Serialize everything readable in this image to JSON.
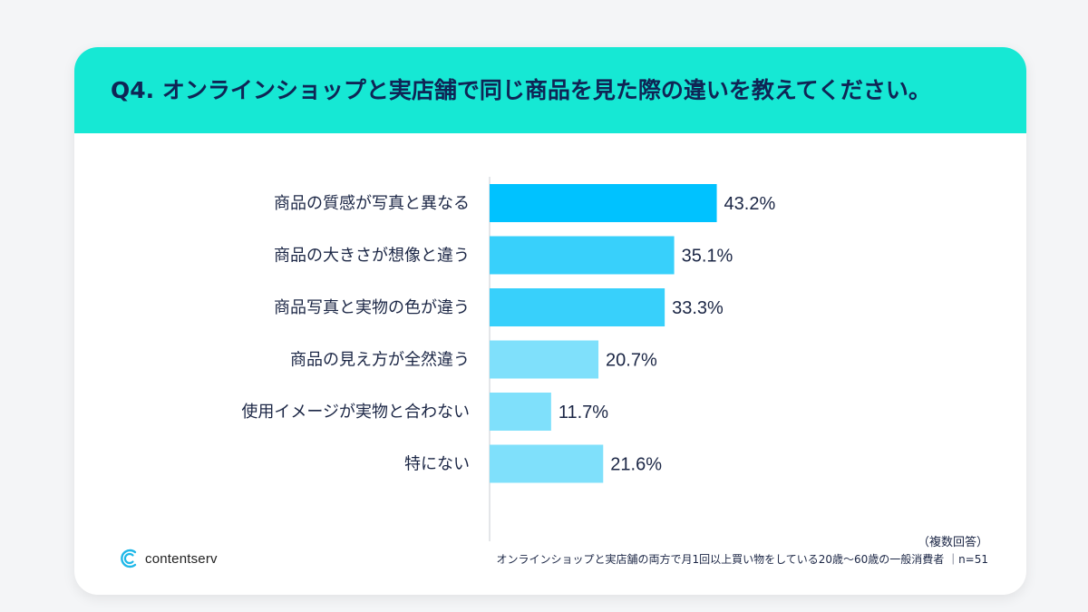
{
  "header": {
    "title": "Q4. オンラインショップと実店舗で同じ商品を見た際の違いを教えてください。"
  },
  "chart_data": {
    "type": "bar",
    "orientation": "horizontal",
    "title": "Q4. オンラインショップと実店舗で同じ商品を見た際の違いを教えてください。",
    "categories": [
      "商品の質感が写真と異なる",
      "商品の大きさが想像と違う",
      "商品写真と実物の色が違う",
      "商品の見え方が全然違う",
      "使用イメージが実物と合わない",
      "特にない"
    ],
    "values": [
      43.2,
      35.1,
      33.3,
      20.7,
      11.7,
      21.6
    ],
    "value_labels": [
      "43.2%",
      "35.1%",
      "33.3%",
      "20.7%",
      "11.7%",
      "21.6%"
    ],
    "colors": [
      "#00c2ff",
      "#38d0fb",
      "#38d0fb",
      "#7fe0fb",
      "#7fe0fb",
      "#7fe0fb"
    ],
    "unit": "%",
    "xlim": [
      0,
      100
    ],
    "grid": false,
    "legend": "none"
  },
  "notes": {
    "multi_answer": "（複数回答）",
    "sample": "オンラインショップと実店舗の両方で月1回以上買い物をしている20歳〜60歳の一般消費者 ｜n=51"
  },
  "brand": {
    "name": "contentserv",
    "icon": "contentserv-logo-icon",
    "accent": "#1fb8e8"
  },
  "theme": {
    "header_bg": "#16e8d4",
    "title_color": "#0f2555"
  }
}
